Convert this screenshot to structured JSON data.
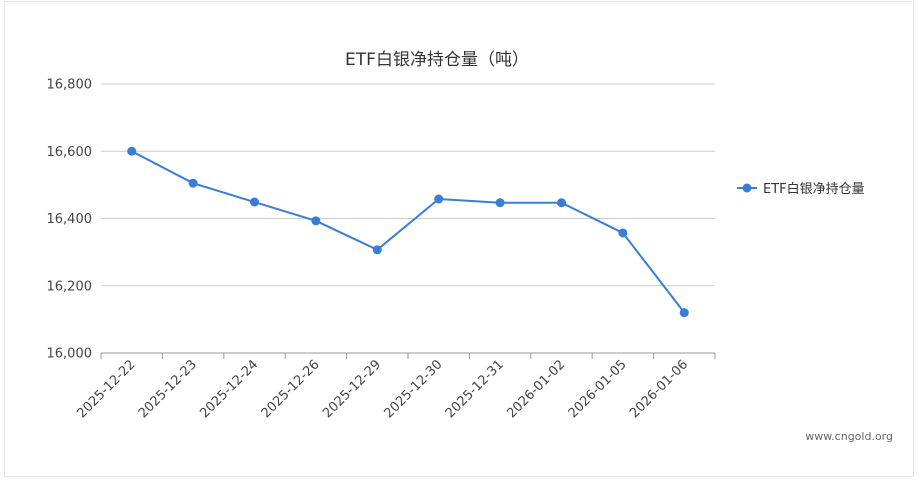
{
  "chart_data": {
    "type": "line",
    "title": "ETF白银净持仓量（吨）",
    "categories": [
      "2025-12-22",
      "2025-12-23",
      "2025-12-24",
      "2025-12-26",
      "2025-12-29",
      "2025-12-30",
      "2025-12-31",
      "2026-01-02",
      "2026-01-05",
      "2026-01-06"
    ],
    "series": [
      {
        "name": "ETF白银净持仓量",
        "values": [
          16600,
          16505,
          16449,
          16393,
          16307,
          16458,
          16447,
          16447,
          16357,
          16120
        ]
      }
    ],
    "ylim": [
      16000,
      16800
    ],
    "yticks": [
      16000,
      16200,
      16400,
      16600,
      16800
    ],
    "ytick_labels": [
      "16,000",
      "16,200",
      "16,400",
      "16,600",
      "16,800"
    ],
    "grid": true,
    "legend_position": "right",
    "colors": {
      "series": "#3a7dd6",
      "grid": "#cccccc",
      "axis": "#999999"
    }
  },
  "watermark": "www.cngold.org"
}
